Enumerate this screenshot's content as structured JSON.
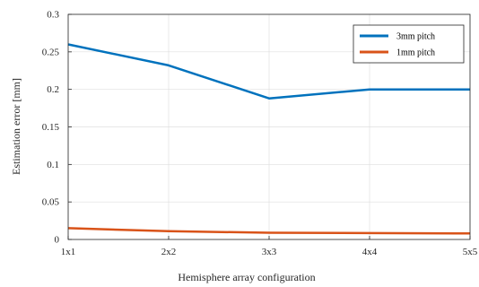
{
  "chart_data": {
    "type": "line",
    "categories": [
      "1x1",
      "2x2",
      "3x3",
      "4x4",
      "5x5"
    ],
    "xlabel": "Hemisphere array configuration",
    "ylabel": "Estimation error [mm]",
    "ylim": [
      0,
      0.3
    ],
    "yticks": [
      "0",
      "0.05",
      "0.1",
      "0.15",
      "0.2",
      "0.25",
      "0.3"
    ],
    "yticks_values": [
      0,
      0.05,
      0.1,
      0.15,
      0.2,
      0.25,
      0.3
    ],
    "grid": true,
    "legend": "top-right",
    "series": [
      {
        "name": "3mm pitch",
        "color": "#0072BD",
        "values": [
          0.26,
          0.232,
          0.188,
          0.2,
          0.2
        ]
      },
      {
        "name": "1mm pitch",
        "color": "#D95319",
        "values": [
          0.015,
          0.011,
          0.009,
          0.0085,
          0.008
        ]
      }
    ]
  }
}
